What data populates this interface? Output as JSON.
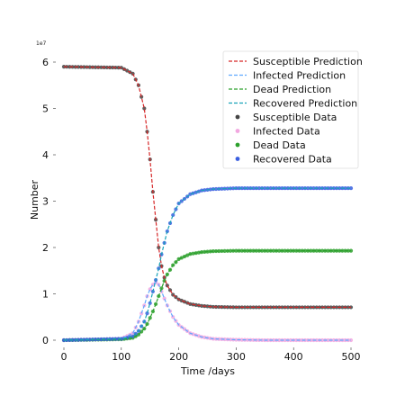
{
  "chart_data": {
    "type": "line",
    "title": "",
    "xlabel": "Time /days",
    "ylabel": "Number",
    "offset_label": "1e7",
    "xlim": [
      0,
      500
    ],
    "ylim": [
      0,
      6
    ],
    "x_ticks": [
      0,
      100,
      200,
      300,
      400,
      500
    ],
    "y_ticks": [
      0,
      1,
      2,
      3,
      4,
      5,
      6
    ],
    "grid": false,
    "legend_position": "top-right",
    "x": [
      0,
      100,
      120,
      130,
      140,
      145,
      150,
      155,
      160,
      165,
      170,
      175,
      180,
      190,
      200,
      220,
      240,
      260,
      300,
      350,
      400,
      450,
      500
    ],
    "series": [
      {
        "name": "Susceptible Prediction",
        "kind": "line",
        "color": "#d62728",
        "values": [
          5.9,
          5.88,
          5.75,
          5.5,
          5.0,
          4.5,
          3.9,
          3.2,
          2.6,
          2.0,
          1.6,
          1.35,
          1.18,
          0.98,
          0.88,
          0.78,
          0.74,
          0.72,
          0.71,
          0.71,
          0.71,
          0.71,
          0.71
        ]
      },
      {
        "name": "Infected Prediction",
        "kind": "line",
        "color": "#5fa8ff",
        "values": [
          0.0,
          0.03,
          0.15,
          0.4,
          0.75,
          0.95,
          1.1,
          1.2,
          1.25,
          1.2,
          1.05,
          0.9,
          0.75,
          0.5,
          0.33,
          0.15,
          0.07,
          0.03,
          0.01,
          0.0,
          0.0,
          0.0,
          0.0
        ]
      },
      {
        "name": "Dead Prediction",
        "kind": "line",
        "color": "#2ca02c",
        "values": [
          0.0,
          0.02,
          0.05,
          0.12,
          0.25,
          0.35,
          0.48,
          0.62,
          0.78,
          0.95,
          1.12,
          1.28,
          1.42,
          1.62,
          1.75,
          1.86,
          1.9,
          1.92,
          1.93,
          1.93,
          1.93,
          1.93,
          1.93
        ]
      },
      {
        "name": "Recovered Prediction",
        "kind": "line",
        "color": "#17a2b8",
        "values": [
          0.0,
          0.03,
          0.08,
          0.2,
          0.4,
          0.58,
          0.8,
          1.05,
          1.3,
          1.55,
          1.85,
          2.1,
          2.35,
          2.7,
          2.95,
          3.15,
          3.23,
          3.26,
          3.28,
          3.28,
          3.28,
          3.28,
          3.28
        ]
      },
      {
        "name": "Susceptible Data",
        "kind": "scatter",
        "color": "#444444",
        "values": [
          5.9,
          5.88,
          5.75,
          5.5,
          5.0,
          4.5,
          3.9,
          3.2,
          2.6,
          2.0,
          1.6,
          1.35,
          1.18,
          0.98,
          0.88,
          0.78,
          0.74,
          0.72,
          0.71,
          0.71,
          0.71,
          0.71,
          0.71
        ]
      },
      {
        "name": "Infected Data",
        "kind": "scatter",
        "color": "#f2a7e0",
        "values": [
          0.0,
          0.03,
          0.15,
          0.4,
          0.75,
          0.95,
          1.1,
          1.2,
          1.25,
          1.2,
          1.05,
          0.9,
          0.75,
          0.5,
          0.33,
          0.15,
          0.07,
          0.03,
          0.01,
          0.0,
          0.0,
          0.0,
          0.0
        ]
      },
      {
        "name": "Dead Data",
        "kind": "scatter",
        "color": "#2ca02c",
        "values": [
          0.0,
          0.02,
          0.05,
          0.12,
          0.25,
          0.35,
          0.48,
          0.62,
          0.78,
          0.95,
          1.12,
          1.28,
          1.42,
          1.62,
          1.75,
          1.86,
          1.9,
          1.92,
          1.93,
          1.93,
          1.93,
          1.93,
          1.93
        ]
      },
      {
        "name": "Recovered Data",
        "kind": "scatter",
        "color": "#3a5fe0",
        "values": [
          0.0,
          0.03,
          0.08,
          0.2,
          0.4,
          0.58,
          0.8,
          1.05,
          1.3,
          1.55,
          1.85,
          2.1,
          2.35,
          2.7,
          2.95,
          3.15,
          3.23,
          3.26,
          3.28,
          3.28,
          3.28,
          3.28,
          3.28
        ]
      }
    ]
  }
}
